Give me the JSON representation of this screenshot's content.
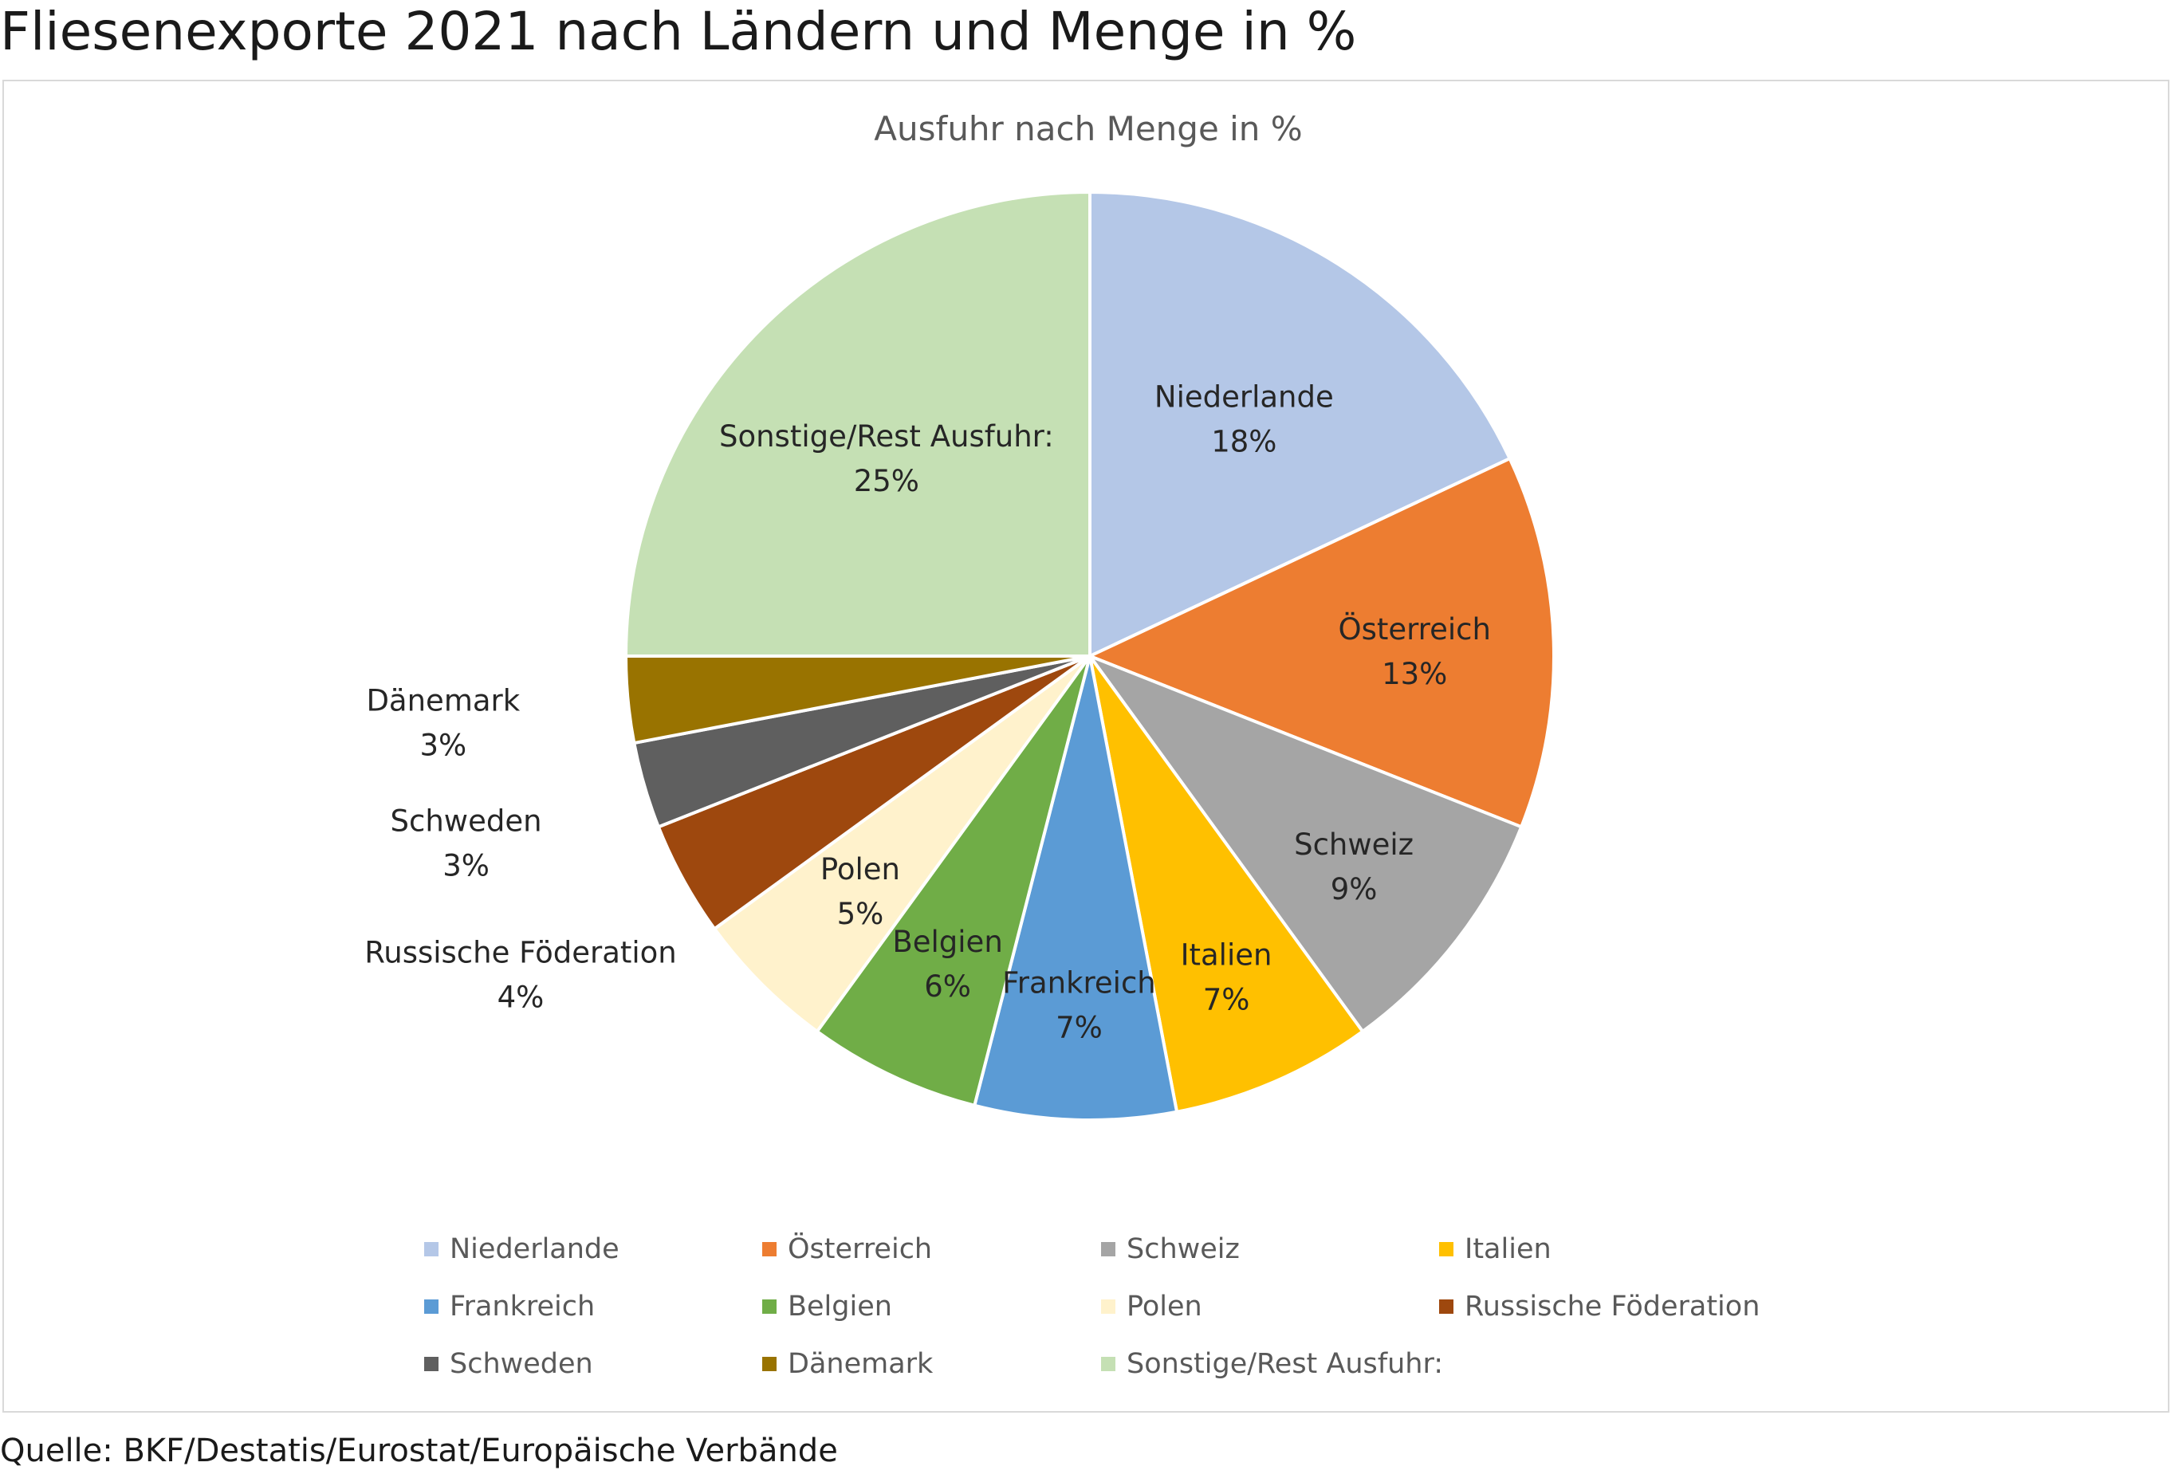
{
  "header": {
    "title": "Fliesenexporte 2021 nach Ländern und Menge in %"
  },
  "footer": {
    "source": "Quelle: BKF/Destatis/Eurostat/Europäische Verbände"
  },
  "chart_data": {
    "type": "pie",
    "title": "Ausfuhr nach Menge in %",
    "legend_position": "bottom",
    "slices": [
      {
        "label": "Niederlande",
        "value": 18,
        "display": "18%",
        "color": "#B4C7E7"
      },
      {
        "label": "Österreich",
        "value": 13,
        "display": "13%",
        "color": "#ED7D31"
      },
      {
        "label": "Schweiz",
        "value": 9,
        "display": "9%",
        "color": "#A5A5A5"
      },
      {
        "label": "Italien",
        "value": 7,
        "display": "7%",
        "color": "#FFC000"
      },
      {
        "label": "Frankreich",
        "value": 7,
        "display": "7%",
        "color": "#5B9BD5"
      },
      {
        "label": "Belgien",
        "value": 6,
        "display": "6%",
        "color": "#70AD47"
      },
      {
        "label": "Polen",
        "value": 5,
        "display": "5%",
        "color": "#FFF2CC"
      },
      {
        "label": "Russische Föderation",
        "value": 4,
        "display": "4%",
        "color": "#9E480E"
      },
      {
        "label": "Schweden",
        "value": 3,
        "display": "3%",
        "color": "#5F5F5F"
      },
      {
        "label": "Dänemark",
        "value": 3,
        "display": "3%",
        "color": "#997300"
      },
      {
        "label": "Sonstige/Rest Ausfuhr:",
        "value": 25,
        "display": "25%",
        "color": "#C5E0B4"
      }
    ]
  }
}
